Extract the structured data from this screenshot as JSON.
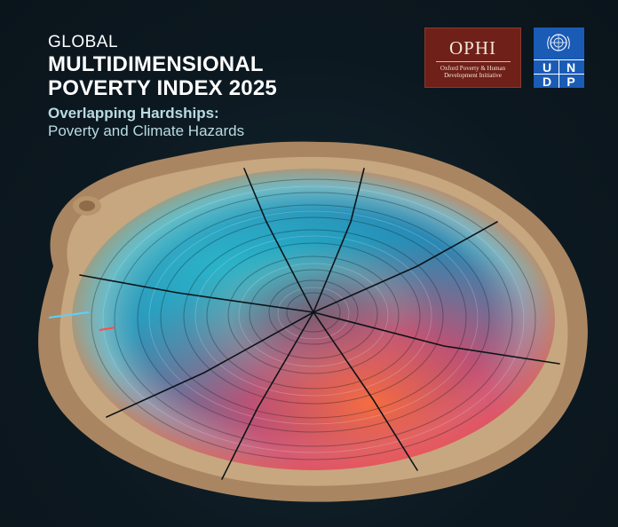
{
  "cover": {
    "kicker": "GLOBAL",
    "title_line1": "MULTIDIMENSIONAL",
    "title_line2": "POVERTY INDEX 2025",
    "subtitle_line1": "Overlapping Hardships:",
    "subtitle_line2": "Poverty and Climate Hazards"
  },
  "logos": {
    "ophi": {
      "name": "OPHI",
      "subtitle": "Oxford Poverty & Human Development Initiative"
    },
    "undp": {
      "letters": [
        "U",
        "N",
        "D",
        "P"
      ]
    }
  },
  "colors": {
    "background": "#0d1a22",
    "ophi_red": "#6f2018",
    "undp_blue": "#1a5bb6",
    "subtitle_tint": "#b9dbe3"
  },
  "artwork": {
    "icon": "tree-ring-slice-illustration"
  }
}
